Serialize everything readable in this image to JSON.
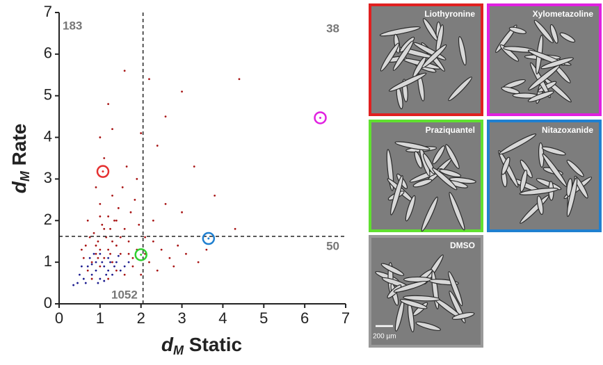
{
  "chart_data": {
    "type": "scatter",
    "x_label": {
      "var": "d",
      "sub": "M",
      "text": " Static"
    },
    "y_label": {
      "var": "d",
      "sub": "M",
      "text": " Rate"
    },
    "xlim": [
      0,
      7
    ],
    "ylim": [
      0,
      7
    ],
    "xticks": [
      0,
      1,
      2,
      3,
      4,
      5,
      6,
      7
    ],
    "yticks": [
      0,
      1,
      2,
      3,
      4,
      5,
      6,
      7
    ],
    "thresholds": {
      "x": 2.05,
      "y": 1.62
    },
    "quadrant_counts": {
      "top_left": 183,
      "top_right": 38,
      "bottom_left": 1052,
      "bottom_right": 50
    },
    "series": [
      {
        "color": "#a81414",
        "x": [
          0.8,
          0.9,
          1.0,
          1.1,
          1.2,
          0.7,
          0.95,
          1.3,
          1.4,
          1.5,
          0.85,
          1.05,
          1.2,
          1.0,
          1.3,
          1.6,
          1.7,
          1.8,
          1.9,
          2.1,
          2.2,
          2.3,
          2.5,
          2.7,
          2.9,
          3.1,
          0.6,
          0.65,
          0.75,
          1.15,
          1.25,
          1.35,
          1.45,
          1.55,
          1.65,
          1.75,
          1.85,
          1.95,
          1.1,
          1.3,
          1.2,
          1.6,
          2.2,
          2.6,
          2.4,
          2.0,
          1.9,
          2.3,
          2.6,
          3.0,
          3.3,
          3.8,
          4.3,
          4.4,
          3.0,
          1.0,
          0.9,
          0.7,
          0.55,
          1.4,
          1.6,
          1.8,
          2.0,
          2.4,
          2.8,
          3.4,
          3.6,
          0.8,
          1.2,
          1.5,
          1.0,
          0.9,
          1.1,
          1.7,
          2.1,
          1.3,
          1.0,
          1.4,
          0.95,
          1.25
        ],
        "y": [
          1.0,
          1.2,
          0.9,
          1.1,
          1.3,
          0.8,
          1.5,
          1.0,
          1.4,
          1.2,
          1.7,
          1.9,
          2.1,
          2.4,
          2.6,
          1.8,
          1.5,
          1.1,
          1.3,
          1.2,
          1.0,
          1.5,
          1.3,
          1.1,
          1.4,
          1.2,
          1.1,
          1.4,
          1.6,
          1.6,
          1.8,
          2.0,
          2.3,
          2.8,
          3.3,
          2.2,
          2.5,
          1.9,
          3.5,
          4.2,
          4.8,
          5.6,
          5.4,
          4.5,
          3.8,
          4.1,
          3.0,
          2.0,
          2.4,
          2.2,
          3.3,
          2.6,
          1.8,
          5.4,
          5.1,
          4.0,
          2.8,
          2.0,
          1.3,
          0.8,
          0.7,
          0.9,
          0.7,
          0.8,
          0.9,
          1.0,
          1.3,
          0.6,
          0.6,
          1.6,
          1.3,
          1.4,
          1.8,
          1.2,
          1.6,
          1.5,
          2.1,
          2.0,
          1.1,
          1.2
        ]
      },
      {
        "color": "#1c1c8f",
        "x": [
          0.5,
          0.6,
          0.7,
          0.8,
          0.9,
          1.0,
          1.1,
          1.2,
          1.3,
          1.4,
          1.5,
          0.65,
          0.75,
          0.85,
          0.95,
          1.05,
          1.15,
          1.25,
          1.35,
          1.6,
          0.45,
          0.55,
          1.0,
          0.9,
          1.2,
          0.35,
          1.7,
          0.8,
          1.1,
          1.45
        ],
        "y": [
          0.7,
          0.6,
          0.9,
          0.7,
          0.8,
          0.6,
          0.9,
          0.8,
          0.7,
          1.0,
          0.8,
          0.5,
          1.1,
          1.2,
          0.5,
          1.0,
          0.7,
          1.0,
          0.9,
          0.9,
          0.5,
          0.9,
          1.2,
          1.0,
          1.1,
          0.45,
          1.0,
          0.95,
          0.55,
          1.15
        ]
      }
    ],
    "highlights": [
      {
        "x": 1.07,
        "y": 3.18,
        "color": "#e53030"
      },
      {
        "x": 6.38,
        "y": 4.47,
        "color": "#e020e0"
      },
      {
        "x": 2.0,
        "y": 1.18,
        "color": "#30d030"
      },
      {
        "x": 3.65,
        "y": 1.57,
        "color": "#2080d0"
      }
    ]
  },
  "images": [
    {
      "label": "Liothyronine",
      "color": "#e02020"
    },
    {
      "label": "Xylometazoline",
      "color": "#e020e0"
    },
    {
      "label": "Praziquantel",
      "color": "#60e030"
    },
    {
      "label": "Nitazoxanide",
      "color": "#2080d0"
    },
    {
      "label": "DMSO",
      "color": "#999999"
    }
  ],
  "scale_bar": "200 µm"
}
